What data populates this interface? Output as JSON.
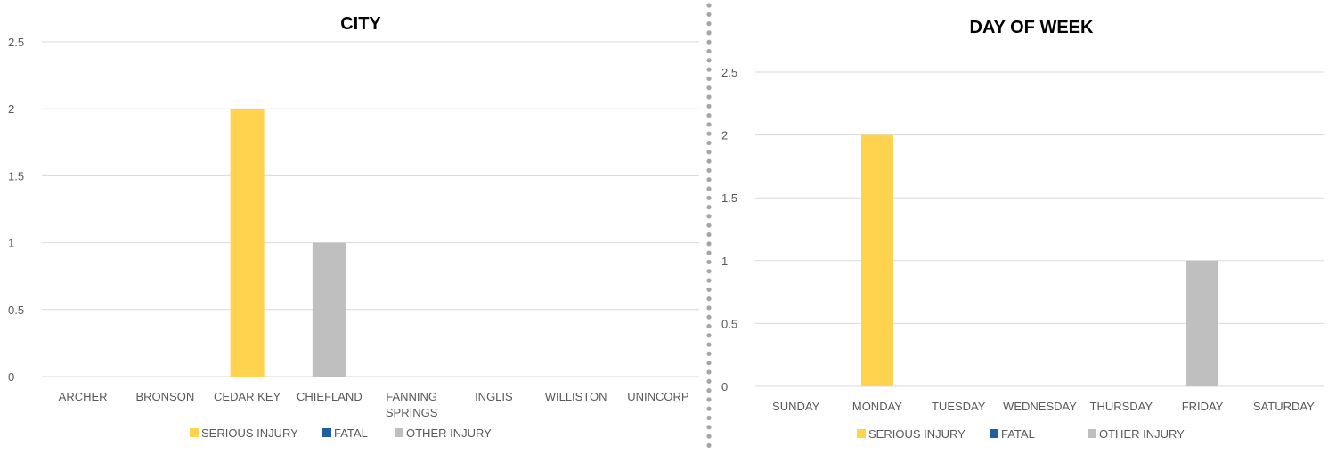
{
  "colors": {
    "serious_injury": "#FFD34E",
    "fatal": "#1F5FA0",
    "other_injury": "#BFBFBF",
    "grid": "#D9D9D9",
    "divider": "#A6A6A6"
  },
  "chart_data": [
    {
      "type": "bar",
      "title": "CITY",
      "categories": [
        "ARCHER",
        "BRONSON",
        "CEDAR KEY",
        "CHIEFLAND",
        "FANNING SPRINGS",
        "INGLIS",
        "WILLISTON",
        "UNINCORP"
      ],
      "series": [
        {
          "name": "SERIOUS INJURY",
          "values": [
            0,
            0,
            2,
            0,
            0,
            0,
            0,
            0
          ]
        },
        {
          "name": "FATAL",
          "values": [
            0,
            0,
            0,
            0,
            0,
            0,
            0,
            0
          ]
        },
        {
          "name": "OTHER INJURY",
          "values": [
            0,
            0,
            0,
            1,
            0,
            0,
            0,
            0
          ]
        }
      ],
      "yticks": [
        "0",
        "0.5",
        "1",
        "1.5",
        "2",
        "2.5"
      ],
      "ylim": [
        0,
        2.5
      ],
      "grid": true,
      "legend": "bottom"
    },
    {
      "type": "bar",
      "title": "DAY OF WEEK",
      "categories": [
        "SUNDAY",
        "MONDAY",
        "TUESDAY",
        "WEDNESDAY",
        "THURSDAY",
        "FRIDAY",
        "SATURDAY"
      ],
      "series": [
        {
          "name": "SERIOUS INJURY",
          "values": [
            0,
            2,
            0,
            0,
            0,
            0,
            0
          ]
        },
        {
          "name": "FATAL",
          "values": [
            0,
            0,
            0,
            0,
            0,
            0,
            0
          ]
        },
        {
          "name": "OTHER INJURY",
          "values": [
            0,
            0,
            0,
            0,
            0,
            1,
            0
          ]
        }
      ],
      "yticks": [
        "0",
        "0.5",
        "1",
        "1.5",
        "2",
        "2.5"
      ],
      "ylim": [
        0,
        2.5
      ],
      "grid": true,
      "legend": "bottom"
    }
  ]
}
